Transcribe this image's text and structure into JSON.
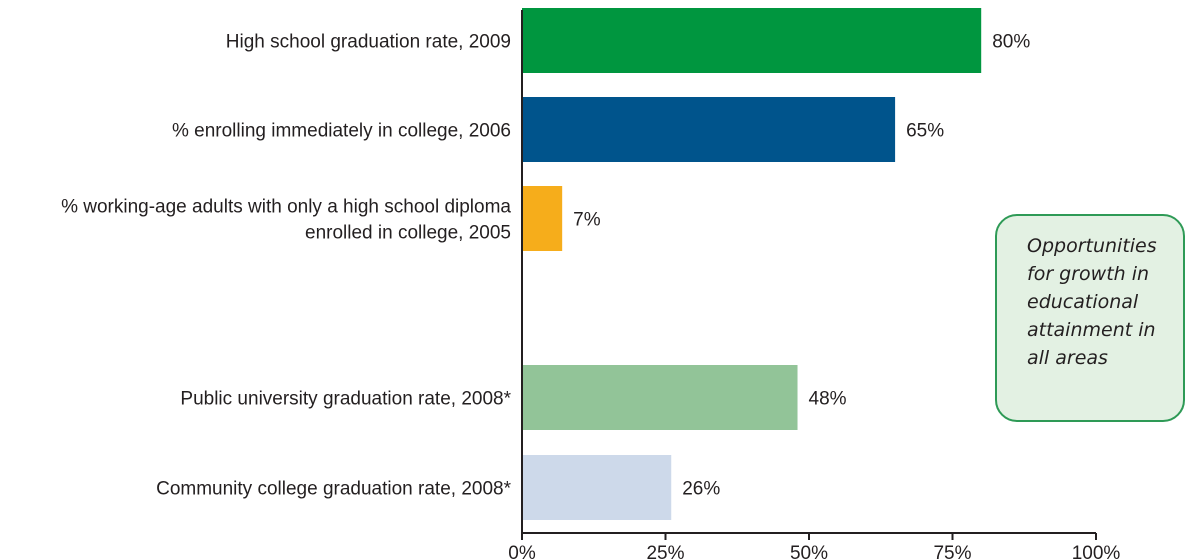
{
  "chart_data": {
    "type": "bar",
    "orientation": "horizontal",
    "categories": [
      [
        "High school graduation rate, 2009"
      ],
      [
        "% enrolling immediately in college, 2006"
      ],
      [
        "% working-age adults with only a high school diploma",
        "enrolled in college, 2005"
      ],
      [
        "Public university graduation rate, 2008*"
      ],
      [
        "Community college graduation rate, 2008*"
      ]
    ],
    "values": [
      80,
      65,
      7,
      48,
      26
    ],
    "value_labels": [
      "80%",
      "65%",
      "7%",
      "48%",
      "26%"
    ],
    "colors": [
      "#00963f",
      "#00548c",
      "#f6ad1b",
      "#92c498",
      "#cdd9ea"
    ],
    "xlim": [
      0,
      100
    ],
    "ticks": [
      0,
      25,
      50,
      75,
      100
    ],
    "tick_labels": [
      "0%",
      "25%",
      "50%",
      "75%",
      "100%"
    ],
    "grid": false,
    "legend": "none"
  },
  "callout": {
    "text": "Opportunities for growth in educational attainment in all areas",
    "lines": [
      "Opportunities",
      "for growth in",
      "educational",
      "attainment in",
      "all areas"
    ]
  }
}
